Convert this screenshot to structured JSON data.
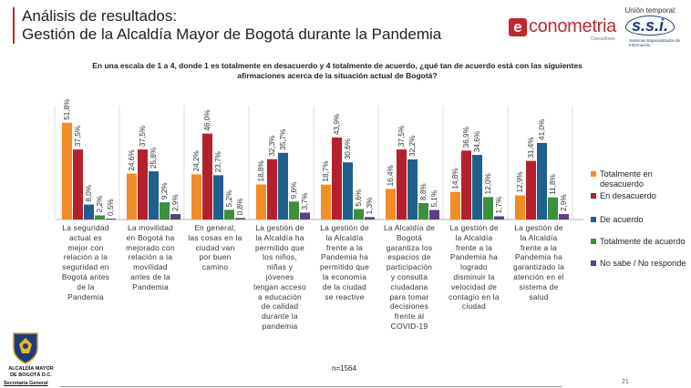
{
  "header": {
    "title_line1": "Análisis de resultados:",
    "title_line2": "Gestión de la Alcaldía Mayor de Bogotá durante la Pandemia"
  },
  "partners": {
    "union_label": "Unión temporal:",
    "econometria_word": "conometria",
    "econometria_sub": "Consultores",
    "ssi_word": "s.s.i.",
    "ssi_sub": "Sistemas Especializados de Información"
  },
  "question": {
    "line1": "En una escala de 1 a 4, donde 1 es totalmente en desacuerdo y 4 totalmente de acuerdo, ¿qué tan de acuerdo está con las siguientes",
    "line2": "afirmaciones acerca de la situación actual de Bogotá?"
  },
  "colors": {
    "accent": "#c0282d",
    "series": [
      "#f28c28",
      "#b5202e",
      "#1f5f8b",
      "#3d8f3d",
      "#5c3f80"
    ]
  },
  "chart_data": {
    "type": "bar",
    "categories": [
      [
        "La seguridad",
        "actual es",
        "mejor con",
        "relación a la",
        "seguridad en",
        "Bogotá antes",
        "de la",
        "Pandemia"
      ],
      [
        "La movilidad",
        "en Bogotá ha",
        "mejorado con",
        "relación a la",
        "movilidad",
        "antes de la",
        "Pandemia"
      ],
      [
        "En general,",
        "las cosas en la",
        "ciudad van",
        "por buen",
        "camino"
      ],
      [
        "La gestión de",
        "la Alcaldía ha",
        "permitido que",
        "los niños,",
        "niñas y",
        "jóvenes",
        "tengan acceso",
        "a educación",
        "de calidad",
        "durante la",
        "pandemia"
      ],
      [
        "La gestión de",
        "la Alcaldía",
        "frente a la",
        "Pandemia ha",
        "permitido que",
        "la economía",
        "de la ciudad",
        "se reactive"
      ],
      [
        "La Alcaldía de",
        "Bogotá",
        "garantiza los",
        "espacios de",
        "participación",
        "y consulta",
        "ciudadana",
        "para tomar",
        "decisiones",
        "frente al",
        "COVID-19"
      ],
      [
        "La gestión de",
        "la Alcaldía",
        "frente a la",
        "Pandemia ha",
        "logrado",
        "disminuir la",
        "velocidad de",
        "contagio en la",
        "ciudad"
      ],
      [
        "La gestión de",
        "la Alcaldía",
        "frente a la",
        "Pandemia ha",
        "garantizado la",
        "atención en el",
        "sistema de",
        "salud"
      ]
    ],
    "series": [
      {
        "name": "Totalmente en desacuerdo",
        "values": [
          51.8,
          24.6,
          24.2,
          18.8,
          18.7,
          16.4,
          14.8,
          12.9
        ]
      },
      {
        "name": "En desacuerdo",
        "values": [
          37.5,
          37.5,
          46.0,
          32.3,
          43.9,
          37.5,
          36.9,
          31.4
        ]
      },
      {
        "name": "De acuerdo",
        "values": [
          8.0,
          25.8,
          23.7,
          35.7,
          30.6,
          32.2,
          34.6,
          41.0
        ]
      },
      {
        "name": "Totalmente de acuerdo",
        "values": [
          2.2,
          9.2,
          5.2,
          9.6,
          5.6,
          8.8,
          12.0,
          11.8
        ]
      },
      {
        "name": "No sabe / No responde",
        "values": [
          0.5,
          2.9,
          0.8,
          3.7,
          1.3,
          5.1,
          1.7,
          2.9
        ]
      }
    ],
    "value_labels": [
      [
        "51,8%",
        "24,6%",
        "24,2%",
        "18,8%",
        "18,7%",
        "16,4%",
        "14,8%",
        "12,9%"
      ],
      [
        "37,5%",
        "37,5%",
        "46,0%",
        "32,3%",
        "43,9%",
        "37,5%",
        "36,9%",
        "31,4%"
      ],
      [
        "8,0%",
        "25,8%",
        "23,7%",
        "35,7%",
        "30,6%",
        "32,2%",
        "34,6%",
        "41,0%"
      ],
      [
        "2,2%",
        "9,2%",
        "5,2%",
        "9,6%",
        "5,6%",
        "8,8%",
        "12,0%",
        "11,8%"
      ],
      [
        "0,5%",
        "2,9%",
        "0,8%",
        "3,7%",
        "1,3%",
        "5,1%",
        "1,7%",
        "2,9%"
      ]
    ],
    "legend_labels": [
      "Totalmente en desacuerdo",
      "En desacuerdo",
      "De acuerdo",
      "Totalmente de acuerdo",
      "No sabe / No responde"
    ],
    "legend_position": "right",
    "ylim": [
      0,
      60
    ],
    "grid": false
  },
  "footer": {
    "n_label": "n=1564",
    "page_number": "21",
    "org_line1": "ALCALDÍA MAYOR",
    "org_line2": "DE BOGOTÁ D.C.",
    "org_line3": "Secretaría General"
  }
}
